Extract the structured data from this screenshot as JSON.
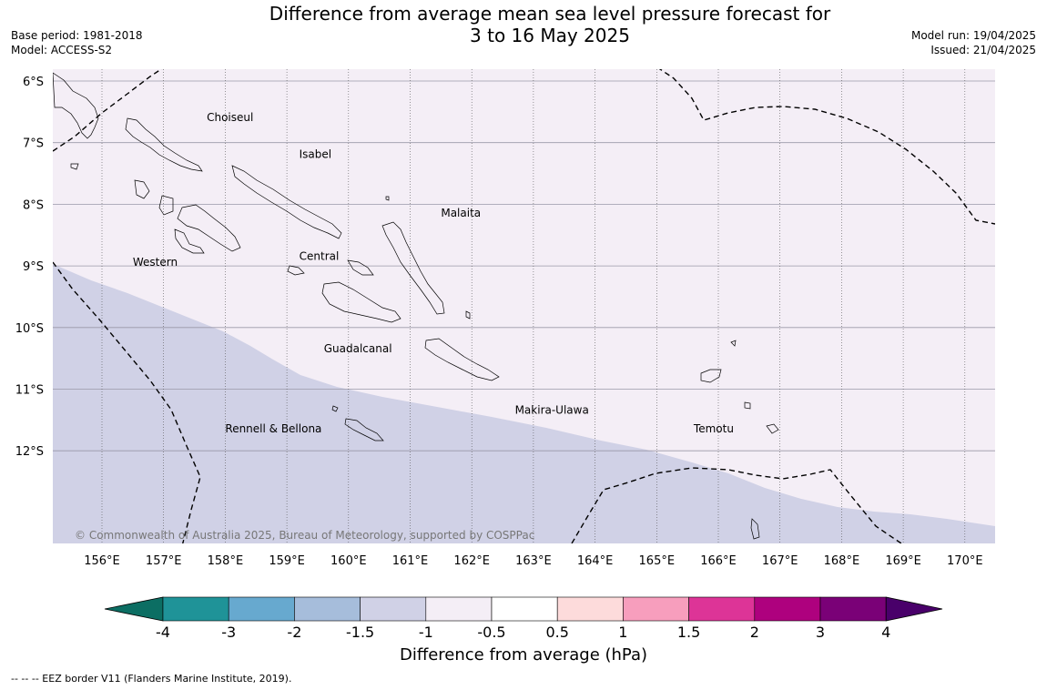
{
  "title": {
    "line1": "Difference from average mean sea level pressure forecast for",
    "line2": "3 to 16 May 2025"
  },
  "meta_left": {
    "base_period": "Base period: 1981-2018",
    "model": "Model: ACCESS-S2"
  },
  "meta_right": {
    "model_run": "Model run: 19/04/2025",
    "issued": "Issued: 21/04/2025"
  },
  "map": {
    "lon_range": [
      155.2,
      170.5
    ],
    "lat_range": [
      -13.5,
      -5.8
    ],
    "lat_labels": [
      "6°S",
      "7°S",
      "8°S",
      "9°S",
      "10°S",
      "11°S",
      "12°S"
    ],
    "lon_labels": [
      "156°E",
      "157°E",
      "158°E",
      "159°E",
      "160°E",
      "161°E",
      "162°E",
      "163°E",
      "164°E",
      "165°E",
      "166°E",
      "167°E",
      "168°E",
      "169°E",
      "170°E"
    ],
    "regions": [
      {
        "name": "Choiseul",
        "lon": 157.7,
        "lat": -6.65
      },
      {
        "name": "Isabel",
        "lon": 159.2,
        "lat": -7.25
      },
      {
        "name": "Malaita",
        "lon": 161.5,
        "lat": -8.2
      },
      {
        "name": "Western",
        "lon": 156.5,
        "lat": -9.0
      },
      {
        "name": "Central",
        "lon": 159.2,
        "lat": -8.9
      },
      {
        "name": "Guadalcanal",
        "lon": 159.6,
        "lat": -10.4
      },
      {
        "name": "Makira-Ulawa",
        "lon": 162.7,
        "lat": -11.4
      },
      {
        "name": "Rennell & Bellona",
        "lon": 158.0,
        "lat": -11.7
      },
      {
        "name": "Temotu",
        "lon": 165.6,
        "lat": -11.7
      }
    ],
    "anomaly_fill": {
      "upper_class": "-1 to -0.5",
      "lower_class": "-1.5 to -1"
    },
    "copyright": "© Commonwealth of Australia 2025, Bureau of Meteorology, supported by COSPPac",
    "colors": {
      "upper": "#f4eef6",
      "lower": "#d0d1e6"
    }
  },
  "colorbar": {
    "ticks": [
      "-4",
      "-3",
      "-2",
      "-1.5",
      "-1",
      "-0.5",
      "0.5",
      "1",
      "1.5",
      "2",
      "3",
      "4"
    ],
    "colors": [
      "#0c6e63",
      "#1f9398",
      "#67a9cf",
      "#a6bddb",
      "#d0d1e6",
      "#f4eef6",
      "#ffffff",
      "#fddbdb",
      "#f79ebd",
      "#dd3497",
      "#ae017e",
      "#7a0177",
      "#49006a"
    ],
    "label": "Difference from average (hPa)"
  },
  "footnote": "-- -- -- EEZ border V11 (Flanders Marine Institute, 2019)."
}
